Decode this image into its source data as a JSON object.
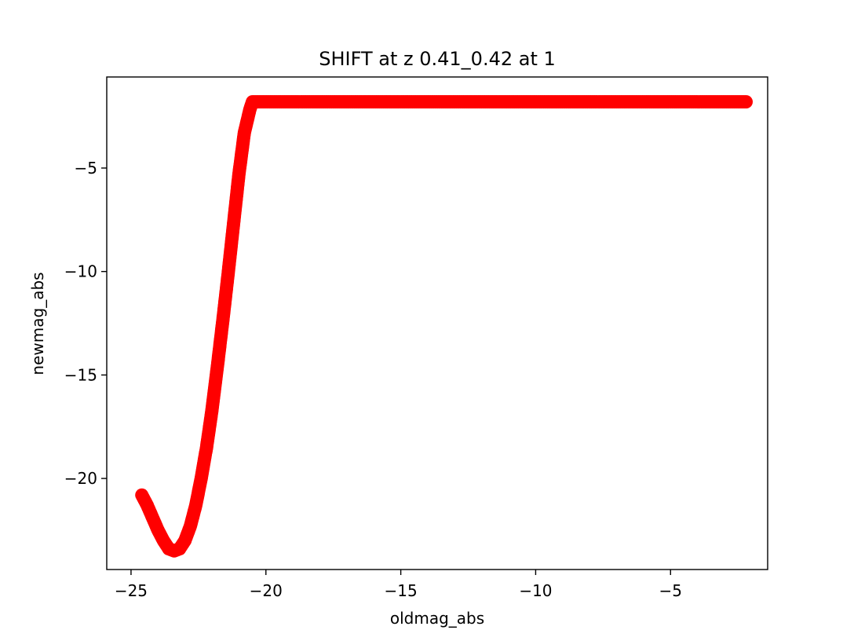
{
  "chart_data": {
    "type": "scatter",
    "title": "SHIFT at z 0.41_0.42 at 1",
    "xlabel": "oldmag_abs",
    "ylabel": "newmag_abs",
    "xlim": [
      -25.9,
      -1.4
    ],
    "ylim": [
      -24.4,
      -0.6
    ],
    "x_ticks": [
      -25,
      -20,
      -15,
      -10,
      -5
    ],
    "x_tick_labels": [
      "−25",
      "−20",
      "−15",
      "−10",
      "−5"
    ],
    "y_ticks": [
      -5,
      -10,
      -15,
      -20
    ],
    "y_tick_labels": [
      "−5",
      "−10",
      "−15",
      "−20"
    ],
    "grid": false,
    "legend": "none",
    "marker_color": "#ff0000",
    "series": [
      {
        "x": [
          -24.6,
          -24.4,
          -24.2,
          -24.0,
          -23.8,
          -23.6,
          -23.4,
          -23.2,
          -23.0,
          -22.8,
          -22.6,
          -22.4,
          -22.2,
          -22.0,
          -21.8,
          -21.6,
          -21.4,
          -21.2,
          -21.0,
          -20.8,
          -20.6,
          -20.5,
          -20.0,
          -19.0,
          -18.0,
          -17.0,
          -16.0,
          -15.0,
          -14.0,
          -13.0,
          -12.0,
          -11.0,
          -10.0,
          -9.0,
          -8.0,
          -7.0,
          -6.0,
          -5.0,
          -4.0,
          -3.0,
          -2.2
        ],
        "y": [
          -20.8,
          -21.3,
          -21.9,
          -22.5,
          -23.0,
          -23.4,
          -23.5,
          -23.4,
          -23.0,
          -22.3,
          -21.3,
          -20.0,
          -18.5,
          -16.7,
          -14.6,
          -12.4,
          -10.1,
          -7.7,
          -5.3,
          -3.3,
          -2.2,
          -1.8,
          -1.8,
          -1.8,
          -1.8,
          -1.8,
          -1.8,
          -1.8,
          -1.8,
          -1.8,
          -1.8,
          -1.8,
          -1.8,
          -1.8,
          -1.8,
          -1.8,
          -1.8,
          -1.8,
          -1.8,
          -1.8,
          -1.8
        ]
      }
    ]
  }
}
